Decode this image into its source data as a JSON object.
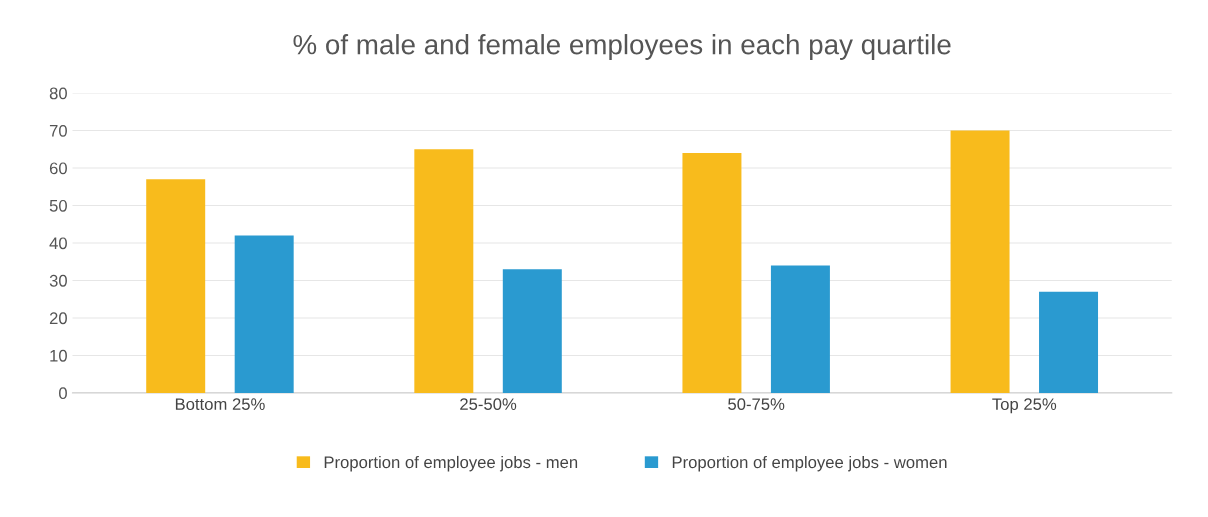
{
  "chart_data": {
    "type": "bar",
    "title": "% of male and female employees in each pay quartile",
    "categories": [
      "Bottom 25%",
      "25-50%",
      "50-75%",
      "Top 25%"
    ],
    "series": [
      {
        "name": "Proportion of employee jobs - men",
        "color": "#f8bb1c",
        "values": [
          57,
          65,
          64,
          70
        ]
      },
      {
        "name": "Proportion of employee jobs - women",
        "color": "#2a9ad0",
        "values": [
          42,
          33,
          34,
          27
        ]
      }
    ],
    "ylim": [
      0,
      80
    ],
    "yticks": [
      0,
      10,
      20,
      30,
      40,
      50,
      60,
      70,
      80
    ],
    "grid": "y",
    "legend": "bottom"
  }
}
